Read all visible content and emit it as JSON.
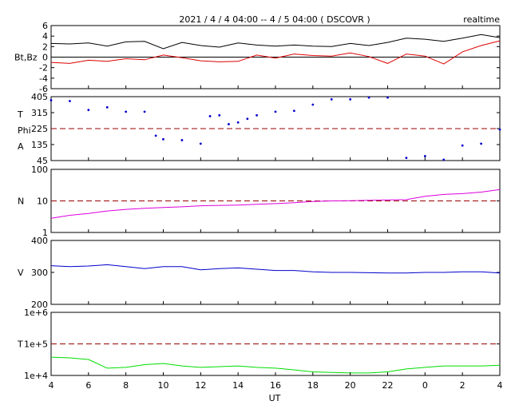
{
  "header": {
    "title": "2021 / 4 / 4  04:00 --  4 / 5  04:00 ( DSCOVR )",
    "mode": "realtime"
  },
  "x_axis": {
    "label": "UT",
    "tick_labels": [
      "4",
      "6",
      "8",
      "10",
      "12",
      "14",
      "16",
      "18",
      "20",
      "22",
      "0",
      "2",
      "4"
    ]
  },
  "colors": {
    "bt": "#000000",
    "bz": "#dd0000",
    "phi": "#0000cc",
    "density": "#dd00dd",
    "speed": "#0000cc",
    "temperature": "#00dd00",
    "reference": "#990000"
  },
  "chart_data": [
    {
      "type": "line",
      "panel": "magnetic-field",
      "ylabel": "Bt,Bz",
      "ylim": [
        -6,
        6
      ],
      "ytick_labels": [
        "6",
        "4",
        "2",
        "0",
        "-2",
        "-4",
        "-6"
      ],
      "reference_line": 0,
      "x": [
        4,
        5,
        6,
        7,
        8,
        9,
        10,
        11,
        12,
        13,
        14,
        15,
        16,
        17,
        18,
        19,
        20,
        21,
        22,
        23,
        24,
        25,
        26,
        27,
        28
      ],
      "series": [
        {
          "name": "Bt",
          "values": [
            2.6,
            2.5,
            2.7,
            2.1,
            2.9,
            3.0,
            1.6,
            2.8,
            2.2,
            1.9,
            2.7,
            2.3,
            2.1,
            2.3,
            2.1,
            2.0,
            2.6,
            2.2,
            2.8,
            3.6,
            3.4,
            3.0,
            3.6,
            4.3,
            3.7
          ]
        },
        {
          "name": "Bz",
          "values": [
            -1.0,
            -1.2,
            -0.6,
            -0.8,
            -0.3,
            -0.5,
            0.4,
            -0.1,
            -0.7,
            -0.9,
            -0.8,
            0.4,
            -0.2,
            0.6,
            0.3,
            0.2,
            0.8,
            0.1,
            -1.2,
            0.6,
            0.2,
            -1.3,
            1.0,
            2.2,
            3.1
          ]
        }
      ]
    },
    {
      "type": "scatter",
      "panel": "phi-angle",
      "ylabel": "T Phi A",
      "ylim": [
        45,
        405
      ],
      "ytick_labels": [
        "405",
        "315",
        "225",
        "135",
        "45"
      ],
      "reference_line": 225,
      "x": [
        4,
        5,
        6,
        7,
        8,
        9,
        9.6,
        10,
        11,
        12,
        12.5,
        13,
        13.5,
        14,
        14.5,
        15,
        16,
        17,
        18,
        19,
        20,
        21,
        22,
        23,
        24,
        25,
        26,
        27,
        28
      ],
      "series": [
        {
          "name": "Phi",
          "values": [
            385,
            380,
            330,
            345,
            320,
            320,
            185,
            165,
            160,
            140,
            295,
            300,
            250,
            260,
            280,
            300,
            320,
            325,
            360,
            390,
            390,
            400,
            400,
            60,
            70,
            50,
            130,
            140,
            220
          ]
        }
      ]
    },
    {
      "type": "line",
      "panel": "density",
      "ylabel": "N",
      "yscale": "log",
      "ylim": [
        1,
        100
      ],
      "ytick_labels": [
        "100",
        "10",
        "1"
      ],
      "reference_line": 10,
      "x": [
        4,
        5,
        6,
        7,
        8,
        9,
        10,
        11,
        12,
        13,
        14,
        15,
        16,
        17,
        18,
        19,
        20,
        21,
        22,
        23,
        24,
        25,
        26,
        27,
        28
      ],
      "series": [
        {
          "name": "N",
          "values": [
            2.8,
            3.5,
            4.0,
            4.8,
            5.4,
            5.8,
            6.2,
            6.5,
            7.0,
            7.2,
            7.4,
            7.8,
            8.2,
            8.8,
            9.6,
            10.0,
            10.2,
            10.5,
            10.8,
            11.0,
            14.0,
            16.0,
            17.0,
            19.0,
            23.0
          ]
        }
      ]
    },
    {
      "type": "line",
      "panel": "speed",
      "ylabel": "V",
      "ylim": [
        200,
        400
      ],
      "ytick_labels": [
        "400",
        "300",
        "200"
      ],
      "x": [
        4,
        5,
        6,
        7,
        8,
        9,
        10,
        11,
        12,
        13,
        14,
        15,
        16,
        17,
        18,
        19,
        20,
        21,
        22,
        23,
        24,
        25,
        26,
        27,
        28
      ],
      "series": [
        {
          "name": "V",
          "values": [
            321,
            318,
            320,
            324,
            318,
            312,
            318,
            318,
            308,
            312,
            314,
            310,
            306,
            306,
            302,
            300,
            300,
            299,
            298,
            298,
            300,
            300,
            302,
            302,
            298
          ]
        }
      ]
    },
    {
      "type": "line",
      "panel": "temperature",
      "ylabel": "T",
      "yscale": "log",
      "ylim": [
        10000,
        1000000
      ],
      "ytick_labels": [
        "1e+6",
        "1e+5",
        "1e+4"
      ],
      "reference_line": 100000,
      "x": [
        4,
        5,
        6,
        7,
        8,
        9,
        10,
        11,
        12,
        13,
        14,
        15,
        16,
        17,
        18,
        19,
        20,
        21,
        22,
        23,
        24,
        25,
        26,
        27,
        28
      ],
      "series": [
        {
          "name": "T",
          "values": [
            38000,
            36000,
            32000,
            17000,
            18000,
            22000,
            24000,
            20000,
            18000,
            19000,
            20000,
            18000,
            17000,
            15000,
            13000,
            12500,
            12000,
            12000,
            13000,
            16000,
            18000,
            20000,
            20000,
            20000,
            21000
          ]
        }
      ]
    }
  ]
}
